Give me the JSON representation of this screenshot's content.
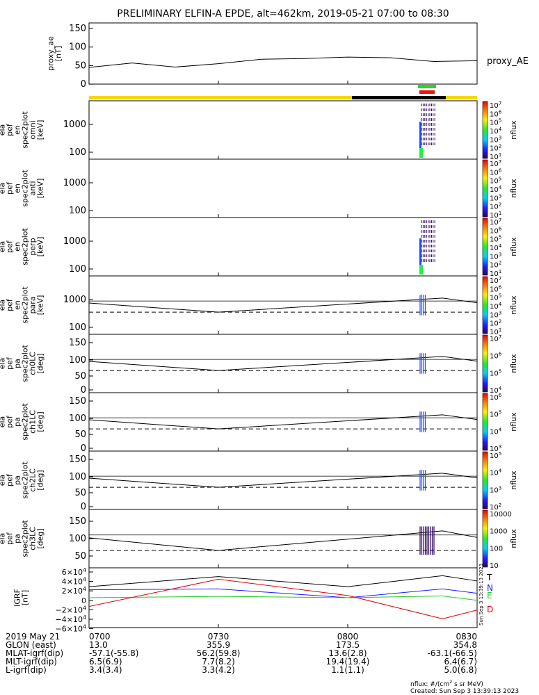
{
  "title": "PRELIMINARY ELFIN-A EPDE, alt=462km, 2019-05-21 07:00 to 08:30",
  "panels": [
    {
      "key": "proxy",
      "ylabel": [
        "proxy_ae",
        "[nT]"
      ],
      "yticks": [
        "150",
        "100",
        "50",
        "0"
      ],
      "right_label": "proxy_AE"
    },
    {
      "key": "omni",
      "ylabel": [
        "ela",
        "pef",
        "en",
        "spec2plot",
        "omni",
        "[keV]"
      ],
      "yticks": [
        "1000",
        "100"
      ],
      "cbar_ticks": [
        "10^7",
        "10^6",
        "10^5",
        "10^4",
        "10^3",
        "10^2",
        "10^1"
      ],
      "cbar_label": "nflux"
    },
    {
      "key": "anti",
      "ylabel": [
        "ela",
        "pef",
        "en",
        "spec2plot",
        "anti",
        "[keV]"
      ],
      "yticks": [
        "1000",
        "100"
      ],
      "cbar_ticks": [
        "10^7",
        "10^6",
        "10^5",
        "10^4",
        "10^3",
        "10^2",
        "10^1"
      ],
      "cbar_label": "nflux"
    },
    {
      "key": "perp",
      "ylabel": [
        "ela",
        "pef",
        "en",
        "spec2plot",
        "perp",
        "[keV]"
      ],
      "yticks": [
        "1000",
        "100"
      ],
      "cbar_ticks": [
        "10^7",
        "10^6",
        "10^5",
        "10^4",
        "10^3",
        "10^2",
        "10^1"
      ],
      "cbar_label": "nflux"
    },
    {
      "key": "para",
      "ylabel": [
        "ela",
        "pef",
        "en",
        "spec2plot",
        "para",
        "[keV]"
      ],
      "yticks": [
        "1000",
        "100"
      ],
      "cbar_ticks": [
        "10^7",
        "10^6",
        "10^5",
        "10^4",
        "10^3",
        "10^2",
        "10^1"
      ],
      "cbar_label": "nflux"
    },
    {
      "key": "ch0",
      "ylabel": [
        "ela",
        "pef",
        "pa",
        "spec2plot",
        "ch0LC",
        "[deg]"
      ],
      "yticks": [
        "150",
        "100",
        "50",
        "0"
      ],
      "cbar_ticks": [
        "10^7",
        "10^6",
        "10^5",
        "10^4"
      ],
      "cbar_label": "nflux"
    },
    {
      "key": "ch1",
      "ylabel": [
        "ela",
        "pef",
        "pa",
        "spec2plot",
        "ch1LC",
        "[deg]"
      ],
      "yticks": [
        "150",
        "100",
        "50",
        "0"
      ],
      "cbar_ticks": [
        "10^6",
        "10^5",
        "10^4",
        "10^3"
      ],
      "cbar_label": "nflux"
    },
    {
      "key": "ch2",
      "ylabel": [
        "ela",
        "pef",
        "pa",
        "spec2plot",
        "ch2LC",
        "[deg]"
      ],
      "yticks": [
        "150",
        "100",
        "50",
        "0"
      ],
      "cbar_ticks": [
        "10^5",
        "10^4",
        "10^3",
        "10^2"
      ],
      "cbar_label": "nflux"
    },
    {
      "key": "ch3",
      "ylabel": [
        "ela",
        "pef",
        "pa",
        "spec2plot",
        "ch3LC",
        "[deg]"
      ],
      "yticks": [
        "150",
        "100",
        "50"
      ],
      "cbar_ticks": [
        "10000",
        "1000",
        "100",
        "10"
      ],
      "cbar_label": "nflux"
    },
    {
      "key": "igrf",
      "ylabel": [
        "IGRF",
        "[nT]"
      ],
      "yticks": [
        "6×10^4",
        "4×10^4",
        "2×10^4",
        "0",
        "−2×10^4",
        "−4×10^4",
        "−6×10^4"
      ],
      "legend": [
        {
          "label": "T",
          "color": "#000000"
        },
        {
          "label": "N",
          "color": "#1a1aff"
        },
        {
          "label": "E",
          "color": "#22cc22"
        },
        {
          "label": "D",
          "color": "#dd0000"
        }
      ]
    }
  ],
  "side_stamp": "Sun Sep  3 13:39:13 2023",
  "time_axis": {
    "rows": [
      {
        "label": "2019 May 21",
        "values": [
          "0700",
          "0730",
          "0800",
          "0830"
        ]
      },
      {
        "label": "GLON (east)",
        "values": [
          "13.0",
          "355.9",
          "173.5",
          "354.8"
        ]
      },
      {
        "label": "MLAT-igrf(dip)",
        "values": [
          "-57.1(-55.8)",
          "56.2(59.8)",
          "13.6(2.8)",
          "-63.1(-66.5)"
        ]
      },
      {
        "label": "MLT-igrf(dip)",
        "values": [
          "6.5(6.9)",
          "7.7(8.2)",
          "19.4(19.4)",
          "6.4(6.7)"
        ]
      },
      {
        "label": "L-igrf(dip)",
        "values": [
          "3.4(3.4)",
          "3.3(4.2)",
          "1.1(1.1)",
          "5.0(6.8)"
        ]
      }
    ]
  },
  "footer": {
    "units": "nflux: #/(cm^2 s sr MeV)",
    "created": "Created: Sun Sep  3 13:39:13 2023"
  },
  "colors": {
    "yellow": "#f5d800",
    "black": "#000000",
    "green": "#22dd22",
    "red": "#ee1111"
  },
  "chart_data": [
    {
      "type": "line",
      "name": "proxy_AE",
      "x_range": [
        "07:00",
        "08:30"
      ],
      "ylim": [
        0,
        150
      ],
      "x_min": [
        0,
        10,
        20,
        30,
        40,
        50,
        60,
        70,
        80,
        90
      ],
      "values": [
        30,
        42,
        31,
        40,
        52,
        54,
        58,
        56,
        46,
        48
      ]
    },
    {
      "type": "heatmap",
      "name": "energy spectrograms",
      "ylim_kev": [
        60,
        8000
      ],
      "ylog": true,
      "clim": [
        10.0,
        10000000.0
      ],
      "active_window_min": [
        78.5,
        82
      ]
    },
    {
      "type": "line",
      "name": "loss cone",
      "ylim": [
        0,
        180
      ],
      "x_min": [
        0,
        30,
        82,
        90
      ],
      "solid": [
        97,
        66,
        114,
        98
      ],
      "dashed_const": 66
    },
    {
      "type": "line",
      "name": "IGRF",
      "ylim": [
        -60000,
        60000
      ],
      "x_min": [
        0,
        30,
        60,
        82,
        90
      ],
      "series": [
        {
          "name": "T",
          "values": [
            25000,
            48000,
            25000,
            50000,
            38000
          ]
        },
        {
          "name": "N",
          "values": [
            18000,
            20000,
            0,
            20000,
            10000
          ]
        },
        {
          "name": "E",
          "values": [
            0,
            3000,
            0,
            4000,
            -6000
          ]
        },
        {
          "name": "D",
          "values": [
            -20000,
            42000,
            5000,
            -48000,
            -28000
          ]
        }
      ]
    }
  ]
}
